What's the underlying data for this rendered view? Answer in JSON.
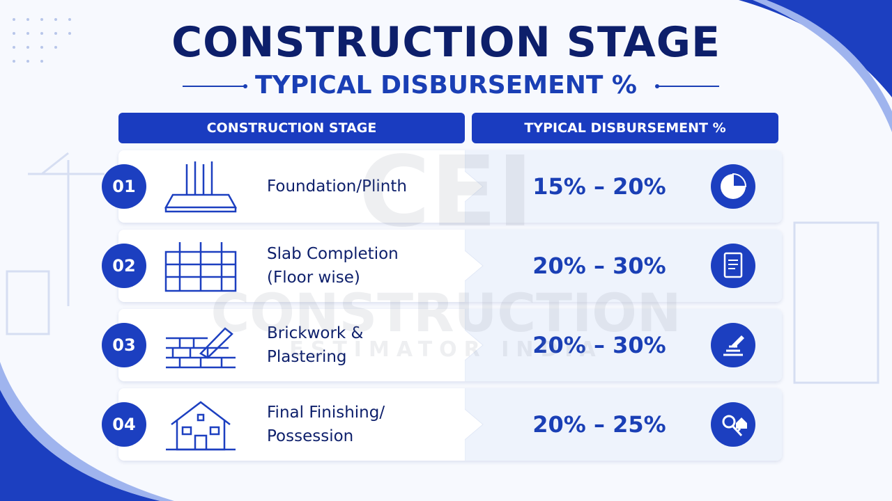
{
  "header": {
    "title": "CONSTRUCTION STAGE",
    "subtitle": "TYPICAL DISBURSEMENT %"
  },
  "watermark": {
    "logo": "CEI",
    "name": "CONSTRUCTION",
    "tagline": "ESTIMATOR INDIA"
  },
  "table": {
    "columns": [
      "CONSTRUCTION STAGE",
      "TYPICAL DISBURSEMENT %"
    ],
    "rows": [
      {
        "number": "01",
        "stage": [
          "Foundation/Plinth"
        ],
        "disbursement": "15% – 20%"
      },
      {
        "number": "02",
        "stage": [
          "Slab Completion",
          "(Floor wise)"
        ],
        "disbursement": "20% – 30%"
      },
      {
        "number": "03",
        "stage": [
          "Brickwork &",
          "Plastering"
        ],
        "disbursement": "20% – 30%"
      },
      {
        "number": "04",
        "stage": [
          "Final Finishing/",
          "Possession"
        ],
        "disbursement": "20% – 25%"
      }
    ]
  }
}
